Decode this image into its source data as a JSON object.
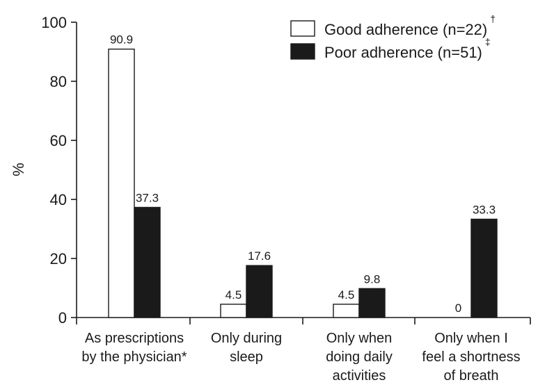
{
  "chart_data": {
    "type": "bar",
    "title": "",
    "xlabel": "",
    "ylabel": "%",
    "ylim": [
      0,
      100
    ],
    "yticks": [
      "0",
      "20",
      "40",
      "60",
      "80",
      "100"
    ],
    "categories": [
      [
        "As prescriptions",
        "by the physician*"
      ],
      [
        "Only during",
        "sleep"
      ],
      [
        "Only when",
        "doing daily",
        "activities"
      ],
      [
        "Only when I",
        "feel a shortness",
        "of breath"
      ]
    ],
    "series": [
      {
        "name": "Good adherence (n=22)",
        "marker": "†",
        "fill": "#ffffff",
        "values": [
          90.9,
          4.5,
          4.5,
          0
        ],
        "labels": [
          "90.9",
          "4.5",
          "4.5",
          "0"
        ]
      },
      {
        "name": "Poor adherence (n=51)",
        "marker": "‡",
        "fill": "#1a1a1a",
        "values": [
          37.3,
          17.6,
          9.8,
          33.3
        ],
        "labels": [
          "37.3",
          "17.6",
          "9.8",
          "33.3"
        ]
      }
    ],
    "legend_position": "top-right",
    "grid": false
  }
}
